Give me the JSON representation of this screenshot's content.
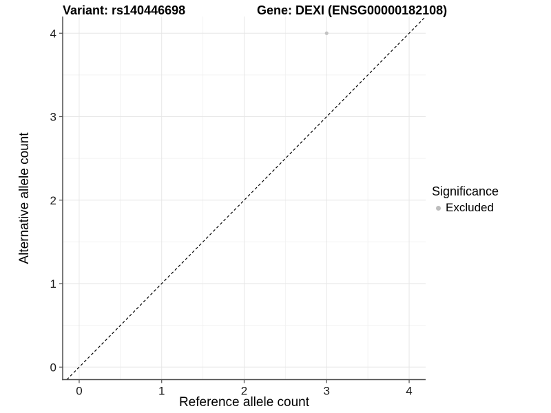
{
  "plot": {
    "title_left": "Variant: rs140446698",
    "title_right": "Gene: DEXI (ENSG00000182108)"
  },
  "chart_data": {
    "type": "scatter",
    "title": "Variant: rs140446698    Gene: DEXI (ENSG00000182108)",
    "xlabel": "Reference allele count",
    "ylabel": "Alternative allele count",
    "x_ticks": [
      0,
      1,
      2,
      3,
      4
    ],
    "y_ticks": [
      0,
      1,
      2,
      3,
      4
    ],
    "xlim": [
      -0.2,
      4.2
    ],
    "ylim": [
      -0.15,
      4.2
    ],
    "minor_grid_step": 0.5,
    "grid": "on",
    "points": [
      {
        "x": 3,
        "y": 4,
        "series": "Excluded"
      }
    ],
    "reference_line": {
      "style": "dashed",
      "slope": 1,
      "intercept": 0
    },
    "legend": {
      "title": "Significance",
      "position": "right",
      "items": [
        {
          "label": "Excluded",
          "color": "#bdbdbd"
        }
      ]
    },
    "colors": {
      "point": "#c2c2c2",
      "grid_major": "#e6e6e6",
      "grid_minor": "#f2f2f2",
      "axis_line": "#4d4d4d",
      "tick_text": "#1a1a1a",
      "reference_line": "#000000"
    }
  }
}
